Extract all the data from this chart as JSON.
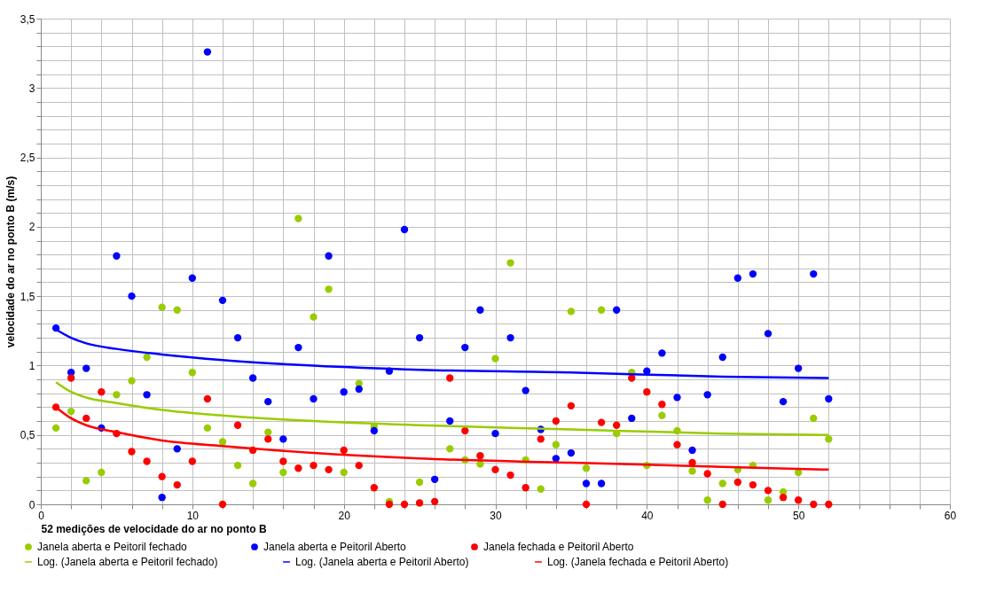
{
  "chart_data": {
    "type": "scatter",
    "xlabel": "52 medições de velocidade do ar no ponto B",
    "ylabel": "velocidade do ar no ponto B (m/s)",
    "x": [
      1,
      2,
      3,
      4,
      5,
      6,
      7,
      8,
      9,
      10,
      11,
      12,
      13,
      14,
      15,
      16,
      17,
      18,
      19,
      20,
      21,
      22,
      23,
      24,
      25,
      26,
      27,
      28,
      29,
      30,
      31,
      32,
      33,
      34,
      35,
      36,
      37,
      38,
      39,
      40,
      41,
      42,
      43,
      44,
      45,
      46,
      47,
      48,
      49,
      50,
      51,
      52
    ],
    "xlim": [
      0,
      60
    ],
    "ylim": [
      0,
      3.5
    ],
    "xticks": [
      0,
      {
        "value": 2,
        "label": null
      },
      {
        "value": 4,
        "label": null
      },
      {
        "value": 6,
        "label": null
      },
      {
        "value": 8,
        "label": null
      },
      10,
      {
        "value": 12,
        "label": null
      },
      {
        "value": 14,
        "label": null
      },
      {
        "value": 16,
        "label": null
      },
      {
        "value": 18,
        "label": null
      },
      20,
      {
        "value": 22,
        "label": null
      },
      {
        "value": 24,
        "label": null
      },
      {
        "value": 26,
        "label": null
      },
      {
        "value": 28,
        "label": null
      },
      30,
      {
        "value": 32,
        "label": null
      },
      {
        "value": 34,
        "label": null
      },
      {
        "value": 36,
        "label": null
      },
      {
        "value": 38,
        "label": null
      },
      40,
      {
        "value": 42,
        "label": null
      },
      {
        "value": 44,
        "label": null
      },
      {
        "value": 46,
        "label": null
      },
      {
        "value": 48,
        "label": null
      },
      50,
      {
        "value": 52,
        "label": null
      },
      {
        "value": 54,
        "label": null
      },
      {
        "value": 56,
        "label": null
      },
      {
        "value": 58,
        "label": null
      },
      60
    ],
    "yticks": [
      0,
      {
        "value": 0.1,
        "label": null
      },
      {
        "value": 0.2,
        "label": null
      },
      {
        "value": 0.3,
        "label": null
      },
      {
        "value": 0.4,
        "label": null
      },
      {
        "value": 0.5,
        "label": "0,5"
      },
      {
        "value": 0.6,
        "label": null
      },
      {
        "value": 0.7,
        "label": null
      },
      {
        "value": 0.8,
        "label": null
      },
      {
        "value": 0.9,
        "label": null
      },
      1,
      {
        "value": 1.1,
        "label": null
      },
      {
        "value": 1.2,
        "label": null
      },
      {
        "value": 1.3,
        "label": null
      },
      {
        "value": 1.4,
        "label": null
      },
      {
        "value": 1.5,
        "label": "1,5"
      },
      {
        "value": 1.6,
        "label": null
      },
      {
        "value": 1.7,
        "label": null
      },
      {
        "value": 1.8,
        "label": null
      },
      {
        "value": 1.9,
        "label": null
      },
      2,
      {
        "value": 2.1,
        "label": null
      },
      {
        "value": 2.2,
        "label": null
      },
      {
        "value": 2.3,
        "label": null
      },
      {
        "value": 2.4,
        "label": null
      },
      {
        "value": 2.5,
        "label": "2,5"
      },
      {
        "value": 2.6,
        "label": null
      },
      {
        "value": 2.7,
        "label": null
      },
      {
        "value": 2.8,
        "label": null
      },
      {
        "value": 2.9,
        "label": null
      },
      3,
      {
        "value": 3.1,
        "label": null
      },
      {
        "value": 3.2,
        "label": null
      },
      {
        "value": 3.3,
        "label": null
      },
      {
        "value": 3.4,
        "label": null
      },
      {
        "value": 3.5,
        "label": "3,5"
      }
    ],
    "grid": true,
    "legend": "bottom",
    "series": [
      {
        "name": "Janela aberta e Peitoril fechado",
        "marker": "circle",
        "color": "#99cc00",
        "values": [
          0.55,
          0.67,
          0.17,
          0.23,
          0.79,
          0.89,
          1.06,
          1.42,
          1.4,
          0.95,
          0.55,
          0.45,
          0.28,
          0.15,
          0.52,
          0.23,
          2.06,
          1.35,
          1.55,
          0.23,
          0.87,
          0.56,
          0.02,
          null,
          0.16,
          null,
          0.4,
          0.32,
          0.29,
          1.05,
          1.74,
          0.32,
          0.11,
          0.43,
          1.39,
          0.26,
          1.4,
          0.51,
          0.95,
          0.28,
          0.64,
          0.53,
          0.24,
          0.03,
          0.15,
          0.25,
          0.28,
          0.03,
          0.09,
          0.23,
          0.62,
          0.47
        ]
      },
      {
        "name": "Janela aberta e Peitoril Aberto",
        "marker": "circle",
        "color": "#0000ff",
        "values": [
          1.27,
          0.95,
          0.98,
          0.55,
          1.79,
          1.5,
          0.79,
          0.05,
          0.4,
          1.63,
          3.26,
          1.47,
          1.2,
          0.91,
          0.74,
          0.47,
          1.13,
          0.76,
          1.79,
          0.81,
          0.83,
          0.53,
          0.96,
          1.98,
          1.2,
          0.18,
          0.6,
          1.13,
          1.4,
          0.51,
          1.2,
          0.82,
          0.54,
          0.33,
          0.37,
          0.15,
          0.15,
          1.4,
          0.62,
          0.96,
          1.09,
          0.77,
          0.39,
          0.79,
          1.06,
          1.63,
          1.66,
          1.23,
          0.74,
          0.98,
          1.66,
          0.76
        ]
      },
      {
        "name": "Janela fechada e Peitoril Aberto",
        "marker": "circle",
        "color": "#ff0000",
        "values": [
          0.7,
          0.91,
          0.62,
          0.81,
          0.51,
          0.38,
          0.31,
          0.2,
          0.14,
          0.31,
          0.76,
          0.0,
          0.57,
          0.39,
          0.47,
          0.31,
          0.26,
          0.28,
          0.25,
          0.39,
          0.28,
          0.12,
          0.0,
          0.0,
          0.01,
          0.02,
          0.91,
          0.53,
          0.35,
          0.25,
          0.21,
          0.12,
          0.47,
          0.6,
          0.71,
          0.0,
          0.59,
          0.57,
          0.91,
          0.81,
          0.72,
          0.43,
          0.3,
          0.22,
          0.0,
          0.16,
          0.14,
          0.1,
          0.05,
          0.03,
          0.0,
          0.0
        ]
      },
      {
        "name": "Log. (Janela aberta e Peitoril fechado)",
        "type": "line",
        "line_style": "solid",
        "color": "#99cc00",
        "x": [
          1,
          2,
          3,
          5,
          8,
          12,
          18,
          25,
          35,
          45,
          52
        ],
        "values": [
          0.88,
          0.81,
          0.77,
          0.73,
          0.68,
          0.64,
          0.6,
          0.57,
          0.54,
          0.51,
          0.5
        ]
      },
      {
        "name": "Log. (Janela aberta e Peitoril Aberto)",
        "type": "line",
        "line_style": "solid",
        "color": "#0000ff",
        "x": [
          1,
          2,
          3,
          5,
          8,
          12,
          18,
          25,
          35,
          45,
          52
        ],
        "values": [
          1.26,
          1.2,
          1.16,
          1.12,
          1.08,
          1.04,
          1.0,
          0.97,
          0.95,
          0.92,
          0.91
        ]
      },
      {
        "name": "Log. (Janela fechada e Peitoril Aberto)",
        "type": "line",
        "line_style": "solid",
        "color": "#ff0000",
        "x": [
          1,
          2,
          3,
          5,
          8,
          12,
          18,
          25,
          35,
          45,
          52
        ],
        "values": [
          0.7,
          0.62,
          0.57,
          0.52,
          0.46,
          0.42,
          0.37,
          0.33,
          0.3,
          0.27,
          0.25
        ]
      }
    ]
  }
}
